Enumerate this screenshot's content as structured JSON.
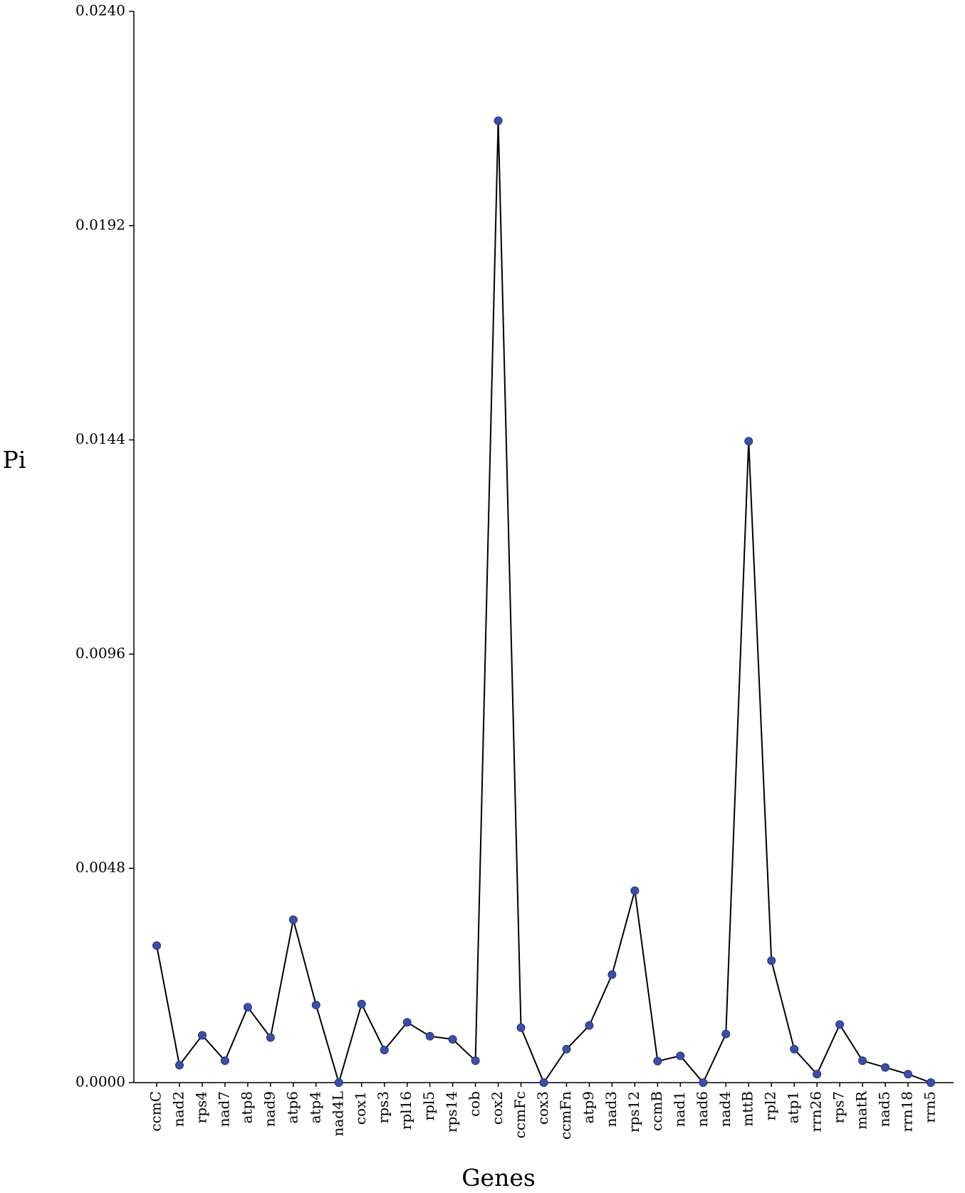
{
  "chart_data": {
    "type": "line",
    "x_label": "Genes",
    "y_label": "Pi",
    "categories": [
      "ccmC",
      "nad2",
      "rps4",
      "nad7",
      "atp8",
      "nad9",
      "atp6",
      "atp4",
      "nad4L",
      "cox1",
      "rps3",
      "rpl16",
      "rpl5",
      "rps14",
      "cob",
      "cox2",
      "ccmFc",
      "cox3",
      "ccmFn",
      "atp9",
      "nad3",
      "rps12",
      "ccmB",
      "nad1",
      "nad6",
      "nad4",
      "mttB",
      "rpl2",
      "atp1",
      "rrn26",
      "rps7",
      "matR",
      "nad5",
      "rrn18",
      "rrn5"
    ],
    "series": [
      {
        "name": "Pi",
        "color": "#3a4fa8",
        "line_color": "#000000",
        "values": [
          0.00307,
          0.00039,
          0.00106,
          0.00049,
          0.00169,
          0.00101,
          0.00365,
          0.00174,
          0,
          0.00176,
          0.00073,
          0.00135,
          0.00104,
          0.00097,
          0.00049,
          0.02155,
          0.00123,
          0,
          0.00075,
          0.00128,
          0.00242,
          0.0043,
          0.00048,
          0.0006,
          0,
          0.00109,
          0.01437,
          0.00273,
          0.00075,
          0.00019,
          0.0013,
          0.00049,
          0.00034,
          0.00019,
          0
        ]
      }
    ],
    "ylim": [
      0,
      0.024
    ],
    "yticks": [
      {
        "value": 0,
        "label": "0.0000"
      },
      {
        "value": 0.0048,
        "label": "0.0048"
      },
      {
        "value": 0.0096,
        "label": "0.0096"
      },
      {
        "value": 0.0144,
        "label": "0.0144"
      },
      {
        "value": 0.0192,
        "label": "0.0192"
      },
      {
        "value": 0.024,
        "label": "0.0240"
      }
    ]
  }
}
